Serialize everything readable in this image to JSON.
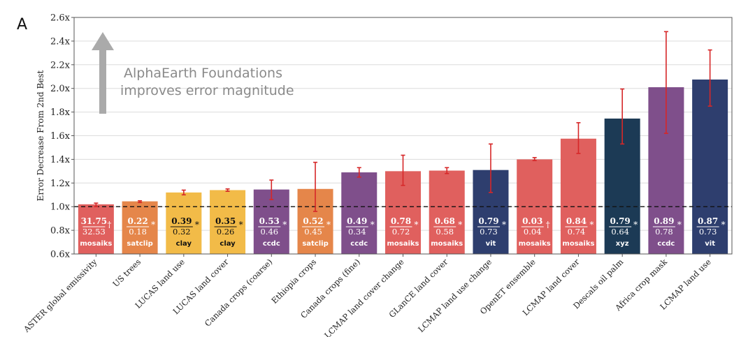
{
  "panel_label": "A",
  "annotation": {
    "line1": "AlphaEarth Foundations",
    "line2": "improves error magnitude"
  },
  "colors": {
    "background": "#ffffff",
    "grid": "#dcdcdc",
    "axis": "#555555",
    "errorbar": "#d62728",
    "arrow": "#aaaaaa",
    "annotation_text": "#8a8a8a",
    "mosaiks": "#e0605e",
    "satclip": "#e5864a",
    "clay": "#f2bb48",
    "ccdc": "#7f4f8b",
    "vit": "#2e3e6e",
    "xyz": "#1c3a55"
  },
  "chart_data": {
    "type": "bar",
    "title": "",
    "xlabel": "",
    "ylabel": "Error Decrease From 2nd Best",
    "ylim": [
      0.6,
      2.6
    ],
    "yticks": [
      "0.6x",
      "0.8x",
      "1.0x",
      "1.2x",
      "1.4x",
      "1.6x",
      "1.8x",
      "2.0x",
      "2.2x",
      "2.4x",
      "2.6x"
    ],
    "reference_line": 1.0,
    "grid": true,
    "categories": [
      "ASTER global emissivity",
      "US trees",
      "LUCAS land use",
      "LUCAS land cover",
      "Canada crops (coarse)",
      "Ethiopia crops",
      "Canada crops (fine)",
      "LCMAP land cover change",
      "GLanCE land cover",
      "LCMAP land use change",
      "OpenET ensemble",
      "LCMAP land cover",
      "Descals oil palm",
      "Africa crop mask",
      "LCMAP land use"
    ],
    "values": [
      1.02,
      1.045,
      1.12,
      1.14,
      1.145,
      1.15,
      1.29,
      1.3,
      1.305,
      1.31,
      1.4,
      1.575,
      1.745,
      2.01,
      2.075
    ],
    "err_low": [
      1.0,
      1.035,
      1.1,
      1.13,
      1.06,
      0.96,
      1.25,
      1.18,
      1.28,
      1.12,
      1.39,
      1.45,
      1.53,
      1.62,
      1.85
    ],
    "err_high": [
      1.03,
      1.05,
      1.14,
      1.15,
      1.225,
      1.375,
      1.33,
      1.435,
      1.33,
      1.53,
      1.415,
      1.71,
      1.995,
      2.48,
      2.325
    ],
    "aef_scores": [
      "31.75",
      "0.22",
      "0.39",
      "0.35",
      "0.53",
      "0.52",
      "0.49",
      "0.78",
      "0.68",
      "0.79",
      "0.03",
      "0.84",
      "0.79",
      "0.89",
      "0.87"
    ],
    "baseline_scores": [
      "32.53",
      "0.18",
      "0.32",
      "0.26",
      "0.46",
      "0.45",
      "0.34",
      "0.72",
      "0.58",
      "0.73",
      "0.04",
      "0.74",
      "0.64",
      "0.78",
      "0.73"
    ],
    "markers": [
      "†",
      "*",
      "*",
      "*",
      "*",
      "*",
      "*",
      "*",
      "*",
      "*",
      "†",
      "*",
      "*",
      "*",
      "*"
    ],
    "baselines": [
      "mosaiks",
      "satclip",
      "clay",
      "clay",
      "ccdc",
      "satclip",
      "ccdc",
      "mosaiks",
      "mosaiks",
      "vit",
      "mosaiks",
      "mosaiks",
      "xyz",
      "ccdc",
      "vit"
    ]
  }
}
